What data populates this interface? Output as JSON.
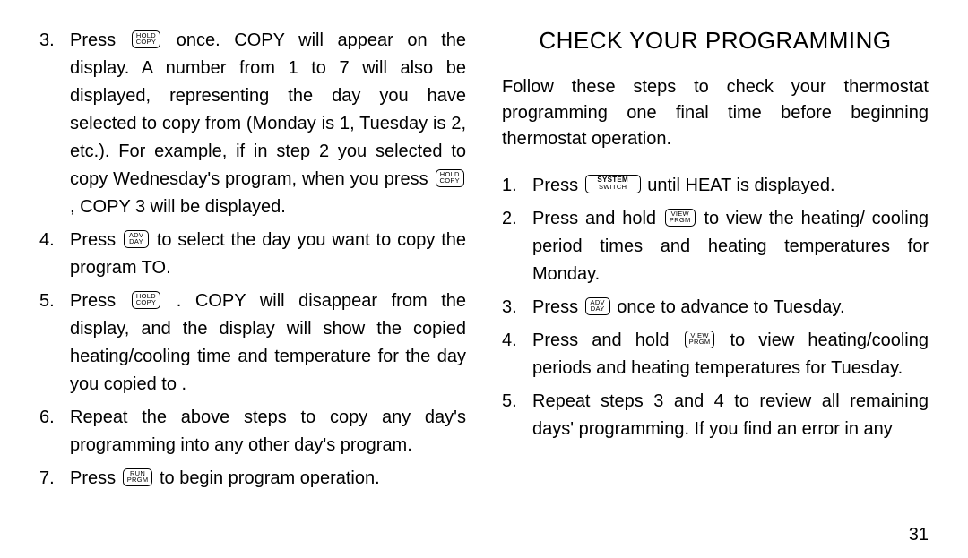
{
  "page_number": "31",
  "buttons": {
    "hold_copy": {
      "l1": "HOLD",
      "l2": "COPY"
    },
    "adv_day": {
      "l1": "ADV",
      "l2": "DAY"
    },
    "run_prgm": {
      "l1": "RUN",
      "l2": "PRGM"
    },
    "system_switch": {
      "l1": "SYSTEM",
      "l2": "SWITCH"
    },
    "view_prgm": {
      "l1": "VIEW",
      "l2": "PRGM"
    }
  },
  "left": {
    "items": [
      {
        "num": "3.",
        "pre": "Press ",
        "btn": "hold_copy",
        "post": " once.  COPY will appear on the display.  A number from 1 to 7 will also be displayed, representing the day you have selected to copy from (Monday is 1, Tuesday is 2, etc.).  For example, if in step 2 you selected to copy Wednesday's program, when you press ",
        "btn2": "hold_copy",
        "post2": " , COPY 3 will be displayed."
      },
      {
        "num": "4.",
        "pre": "Press ",
        "btn": "adv_day",
        "post": " to select the day you want to copy the program TO."
      },
      {
        "num": "5.",
        "pre": "Press ",
        "btn": "hold_copy",
        "post": " . COPY will disappear from the display, and the display will show the copied heating/cooling time and temperature for the day you copied to ."
      },
      {
        "num": "6.",
        "text": "Repeat the above steps to copy any day's programming into any other day's program."
      },
      {
        "num": "7.",
        "pre": "Press ",
        "btn": "run_prgm",
        "post": " to begin program operation."
      }
    ]
  },
  "right": {
    "heading": "CHECK YOUR PROGRAMMING",
    "intro": "Follow these steps to check your thermostat programming one final time before beginning thermostat operation.",
    "items": [
      {
        "num": "1.",
        "pre": "Press ",
        "btn": "system_switch",
        "btn_wide": true,
        "post": " until HEAT is displayed."
      },
      {
        "num": "2.",
        "pre": "Press and hold ",
        "btn": "view_prgm",
        "post": " to view the heating/ cooling period times and heating temperatures for Monday."
      },
      {
        "num": "3.",
        "pre": "Press ",
        "btn": "adv_day",
        "post": " once to advance to Tuesday."
      },
      {
        "num": "4.",
        "pre": "Press and hold ",
        "btn": "view_prgm",
        "post": " to view heating/cooling periods and heating temperatures for Tuesday."
      },
      {
        "num": "5.",
        "text": "Repeat steps 3 and 4 to review all remaining days' programming.  If you find an error in any"
      }
    ]
  }
}
